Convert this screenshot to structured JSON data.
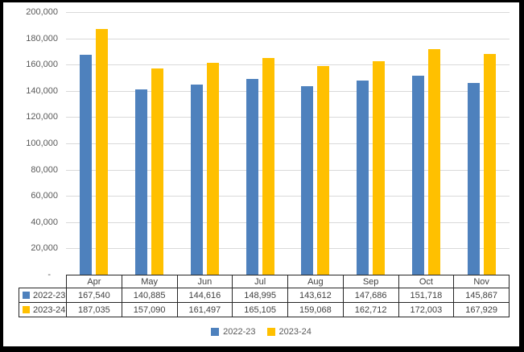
{
  "chart_data": {
    "type": "bar",
    "title": "",
    "xlabel": "",
    "ylabel": "",
    "categories": [
      "Apr",
      "May",
      "Jun",
      "Jul",
      "Aug",
      "Sep",
      "Oct",
      "Nov"
    ],
    "series": [
      {
        "name": "2022-23",
        "color": "#4E81BD",
        "values": [
          167540,
          140885,
          144616,
          148995,
          143612,
          147686,
          151718,
          145867
        ]
      },
      {
        "name": "2023-24",
        "color": "#FFC000",
        "values": [
          187035,
          157090,
          161497,
          165105,
          159068,
          162712,
          172003,
          167929
        ]
      }
    ],
    "ylim": [
      0,
      200000
    ],
    "y_tick_step": 20000,
    "y_tick_labels": [
      "-",
      "20,000",
      "40,000",
      "60,000",
      "80,000",
      "100,000",
      "120,000",
      "140,000",
      "160,000",
      "180,000",
      "200,000"
    ],
    "grid": true,
    "legend_position": "bottom",
    "has_data_table": true
  },
  "table": {
    "corner_label": "",
    "columns": [
      "Apr",
      "May",
      "Jun",
      "Jul",
      "Aug",
      "Sep",
      "Oct",
      "Nov"
    ],
    "rows": [
      {
        "label": "2022-23",
        "color": "#4E81BD",
        "values": [
          "167,540",
          "140,885",
          "144,616",
          "148,995",
          "143,612",
          "147,686",
          "151,718",
          "145,867"
        ]
      },
      {
        "label": "2023-24",
        "color": "#FFC000",
        "values": [
          "187,035",
          "157,090",
          "161,497",
          "165,105",
          "159,068",
          "162,712",
          "172,003",
          "167,929"
        ]
      }
    ]
  },
  "legend": {
    "items": [
      {
        "label": "2022-23",
        "color": "#4E81BD"
      },
      {
        "label": "2023-24",
        "color": "#FFC000"
      }
    ]
  },
  "colors": {
    "series_blue": "#4E81BD",
    "series_yellow": "#FFC000",
    "gridline": "#D9D9D9",
    "axis_text": "#595959",
    "table_text": "#404040",
    "table_border": "#262626",
    "frame_border": "#000000",
    "background": "#FFFFFF"
  }
}
